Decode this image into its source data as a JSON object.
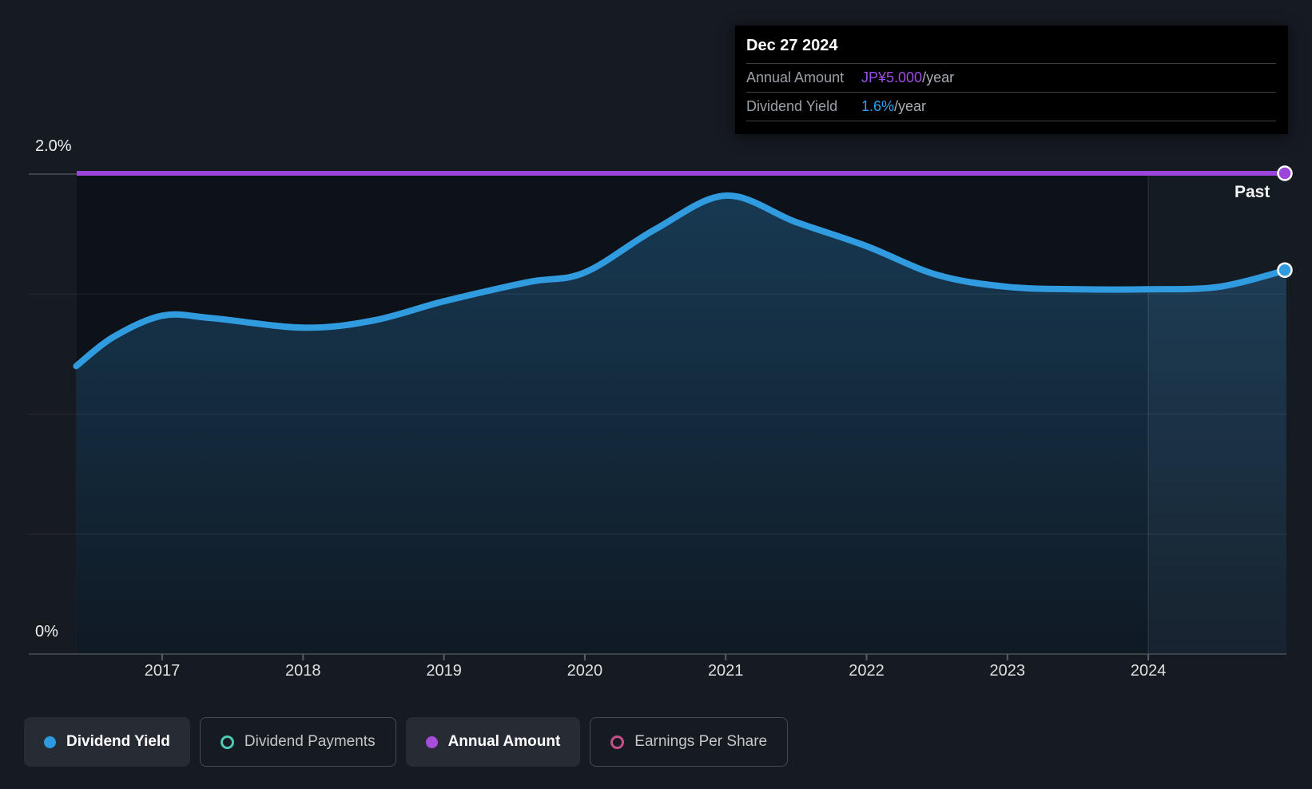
{
  "page": {
    "background": "#161a21"
  },
  "tooltip": {
    "date": "Dec 27 2024",
    "rows": [
      {
        "label": "Annual Amount",
        "value": "JP¥5.000",
        "suffix": "/year",
        "value_color": "#9d4ee0"
      },
      {
        "label": "Dividend Yield",
        "value": "1.6%",
        "suffix": "/year",
        "value_color": "#2ea0f0"
      }
    ]
  },
  "axis": {
    "y_top_label": "2.0%",
    "y_bottom_label": "0%"
  },
  "past_label": "Past",
  "legend": {
    "position": "bottom-left",
    "items": [
      {
        "label": "Dividend Yield",
        "color": "#2b9ae0",
        "marker": "filled",
        "active": true
      },
      {
        "label": "Dividend Payments",
        "color": "#4fc8b4",
        "marker": "ring",
        "active": false
      },
      {
        "label": "Annual Amount",
        "color": "#a64ddb",
        "marker": "filled",
        "active": true
      },
      {
        "label": "Earnings Per Share",
        "color": "#c74f8c",
        "marker": "ring",
        "active": false
      }
    ]
  },
  "chart_data": {
    "type": "area",
    "title": "Dividend yield history",
    "x_tick_labels": [
      "2017",
      "2018",
      "2019",
      "2020",
      "2021",
      "2022",
      "2023",
      "2024"
    ],
    "x_range": [
      2016.39,
      2024.98
    ],
    "y_axis": {
      "unit": "%",
      "min": 0,
      "max": 2.0,
      "gridline_step": 0.5,
      "labeled_ticks": [
        "2.0%",
        "0%"
      ]
    },
    "grid": true,
    "past_region": {
      "from_year": 2024,
      "to_year": 2024.98,
      "label": "Past"
    },
    "series": [
      {
        "name": "Dividend Yield",
        "unit": "%",
        "color": "#319be0",
        "style": "line+area",
        "end_marker": true,
        "points": [
          [
            2016.39,
            1.2
          ],
          [
            2016.65,
            1.32
          ],
          [
            2017.0,
            1.41
          ],
          [
            2017.35,
            1.4
          ],
          [
            2018.0,
            1.36
          ],
          [
            2018.5,
            1.39
          ],
          [
            2019.0,
            1.47
          ],
          [
            2019.6,
            1.55
          ],
          [
            2020.0,
            1.59
          ],
          [
            2020.5,
            1.77
          ],
          [
            2021.0,
            1.91
          ],
          [
            2021.5,
            1.8
          ],
          [
            2022.0,
            1.7
          ],
          [
            2022.5,
            1.58
          ],
          [
            2023.0,
            1.53
          ],
          [
            2023.5,
            1.52
          ],
          [
            2024.0,
            1.52
          ],
          [
            2024.5,
            1.53
          ],
          [
            2024.98,
            1.6
          ]
        ]
      },
      {
        "name": "Annual Amount",
        "unit": "JP¥/year",
        "color": "#9c45db",
        "style": "line",
        "end_marker": true,
        "constant_value": 5.0,
        "display_value": "JP¥5.000/year",
        "plotted_at_percent": 2.0
      }
    ]
  },
  "colors": {
    "plot_background": "#0d1118",
    "gridline": "rgba(255,255,255,0.07)",
    "top_gridline": "#4a525c",
    "axis_line": "#3d434b",
    "past_band": "rgba(170,210,255,0.05)"
  }
}
